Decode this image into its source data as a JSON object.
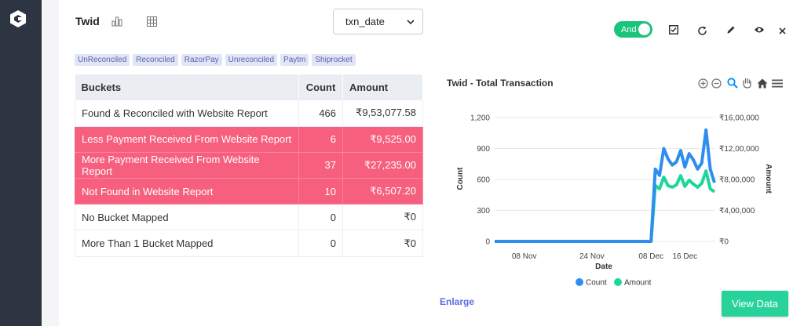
{
  "widget": {
    "title": "Twid",
    "date_field": "txn_date",
    "toggle_label": "And"
  },
  "tags": [
    "UnReconciled",
    "Reconciled",
    "RazorPay",
    "Unreconciled",
    "Paytm",
    "Shiprocket"
  ],
  "table": {
    "headers": [
      "Buckets",
      "Count",
      "Amount"
    ],
    "rows": [
      {
        "bucket": "Found & Reconciled with Website Report",
        "count": "466",
        "amount": "₹9,53,077.58",
        "highlight": false
      },
      {
        "bucket": "Less Payment Received From Website Report",
        "count": "6",
        "amount": "₹9,525.00",
        "highlight": true
      },
      {
        "bucket": "More Payment Received From Website Report",
        "count": "37",
        "amount": "₹27,235.00",
        "highlight": true
      },
      {
        "bucket": "Not Found in Website Report",
        "count": "10",
        "amount": "₹6,507.20",
        "highlight": true
      },
      {
        "bucket": "No Bucket Mapped",
        "count": "0",
        "amount": "₹0",
        "highlight": false
      },
      {
        "bucket": "More Than 1 Bucket Mapped",
        "count": "0",
        "amount": "₹0",
        "highlight": false
      }
    ]
  },
  "chart_data": {
    "type": "line",
    "title": "Twid - Total Transaction",
    "xlabel": "Date",
    "ylabel": "Count",
    "y2label": "Amount",
    "x_tick_labels": [
      "08 Nov",
      "24 Nov",
      "08 Dec",
      "16 Dec"
    ],
    "y_tick_labels": [
      "0",
      "300",
      "600",
      "900",
      "1,200"
    ],
    "y2_tick_labels": [
      "₹0",
      "₹4,00,000",
      "₹8,00,000",
      "₹12,00,000",
      "₹16,00,000"
    ],
    "ylim": [
      0,
      1200
    ],
    "y2lim": [
      0,
      1600000
    ],
    "legend_position": "bottom",
    "series": [
      {
        "name": "Count",
        "color": "#2d8ef0",
        "axis": "left",
        "values": [
          0,
          0,
          0,
          0,
          0,
          0,
          0,
          0,
          0,
          0,
          0,
          0,
          0,
          0,
          0,
          0,
          0,
          0,
          0,
          0,
          0,
          0,
          0,
          0,
          0,
          0,
          0,
          0,
          0,
          0,
          0,
          0,
          0,
          0,
          0,
          0,
          0,
          0,
          700,
          640,
          900,
          800,
          740,
          770,
          880,
          720,
          850,
          790,
          700,
          760,
          1080,
          700,
          570
        ]
      },
      {
        "name": "Amount",
        "color": "#1dd69a",
        "axis": "right",
        "values": [
          0,
          0,
          0,
          0,
          0,
          0,
          0,
          0,
          0,
          0,
          0,
          0,
          0,
          0,
          0,
          0,
          0,
          0,
          0,
          0,
          0,
          0,
          0,
          0,
          0,
          0,
          0,
          0,
          0,
          0,
          0,
          0,
          0,
          0,
          0,
          0,
          0,
          0,
          720000,
          680000,
          830000,
          720000,
          700000,
          730000,
          850000,
          710000,
          790000,
          740000,
          700000,
          750000,
          910000,
          680000,
          640000
        ]
      }
    ]
  },
  "actions": {
    "enlarge": "Enlarge",
    "view_data": "View Data"
  },
  "icons": {
    "bar_chart": "bar-chart-icon",
    "table": "table-icon",
    "check": "check-square-icon",
    "refresh": "refresh-icon",
    "edit": "pencil-icon",
    "view": "eye-icon",
    "close": "close-icon"
  }
}
